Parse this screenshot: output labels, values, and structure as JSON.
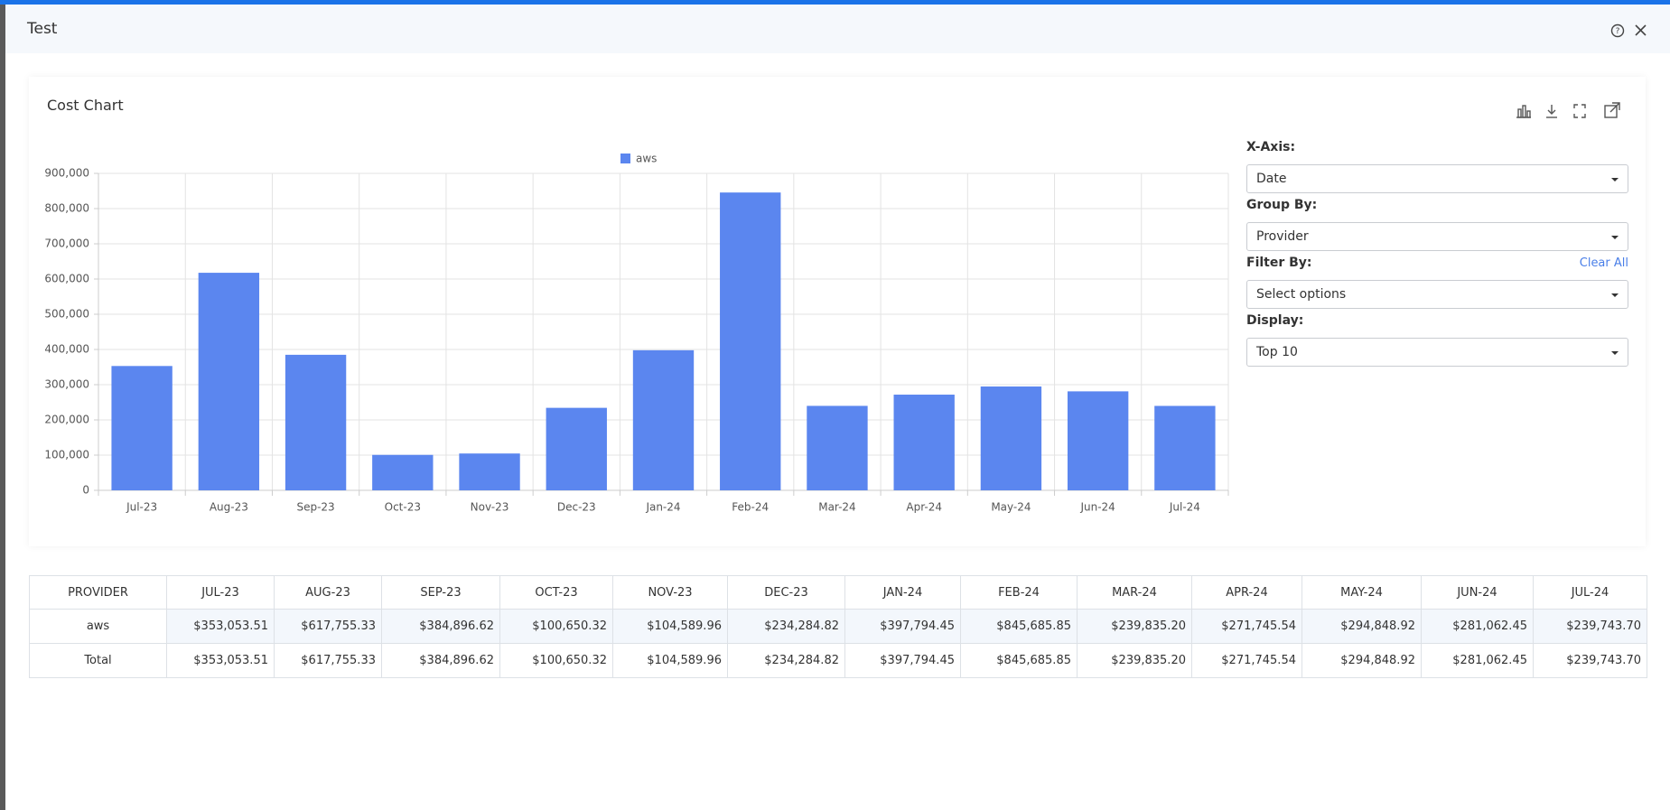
{
  "header": {
    "title": "Test"
  },
  "panel": {
    "title": "Cost Chart"
  },
  "chart_data": {
    "type": "bar",
    "categories": [
      "Jul-23",
      "Aug-23",
      "Sep-23",
      "Oct-23",
      "Nov-23",
      "Dec-23",
      "Jan-24",
      "Feb-24",
      "Mar-24",
      "Apr-24",
      "May-24",
      "Jun-24",
      "Jul-24"
    ],
    "series": [
      {
        "name": "aws",
        "color": "#5b86ef",
        "values": [
          353053.51,
          617755.33,
          384896.62,
          100650.32,
          104589.96,
          234284.82,
          397794.45,
          845685.85,
          239835.2,
          271745.54,
          294848.92,
          281062.45,
          239743.7
        ]
      }
    ],
    "ylim": [
      0,
      900000
    ],
    "yticks": [
      0,
      {
        "value": 100000,
        "label": "100,000"
      },
      {
        "value": 200000,
        "label": "200,000"
      },
      {
        "value": 300000,
        "label": "300,000"
      },
      {
        "value": 400000,
        "label": "400,000"
      },
      {
        "value": 500000,
        "label": "500,000"
      },
      {
        "value": 600000,
        "label": "600,000"
      },
      {
        "value": 700000,
        "label": "700,000"
      },
      {
        "value": 800000,
        "label": "800,000"
      },
      {
        "value": 900000,
        "label": "900,000"
      }
    ],
    "grid": true,
    "legend": "top"
  },
  "controls": [
    {
      "label": "X-Axis:",
      "value": "Date"
    },
    {
      "label": "Group By:",
      "value": "Provider"
    },
    {
      "label": "Filter By:",
      "value": "Select options",
      "action": "Clear All"
    },
    {
      "label": "Display:",
      "value": "Top 10"
    }
  ],
  "table": {
    "header": [
      "PROVIDER",
      "JUL-23",
      "AUG-23",
      "SEP-23",
      "OCT-23",
      "NOV-23",
      "DEC-23",
      "JAN-24",
      "FEB-24",
      "MAR-24",
      "APR-24",
      "MAY-24",
      "JUN-24",
      "JUL-24"
    ],
    "rows": [
      [
        "aws",
        "$353,053.51",
        "$617,755.33",
        "$384,896.62",
        "$100,650.32",
        "$104,589.96",
        "$234,284.82",
        "$397,794.45",
        "$845,685.85",
        "$239,835.20",
        "$271,745.54",
        "$294,848.92",
        "$281,062.45",
        "$239,743.70"
      ],
      [
        "Total",
        "$353,053.51",
        "$617,755.33",
        "$384,896.62",
        "$100,650.32",
        "$104,589.96",
        "$234,284.82",
        "$397,794.45",
        "$845,685.85",
        "$239,835.20",
        "$271,745.54",
        "$294,848.92",
        "$281,062.45",
        "$239,743.70"
      ]
    ]
  }
}
